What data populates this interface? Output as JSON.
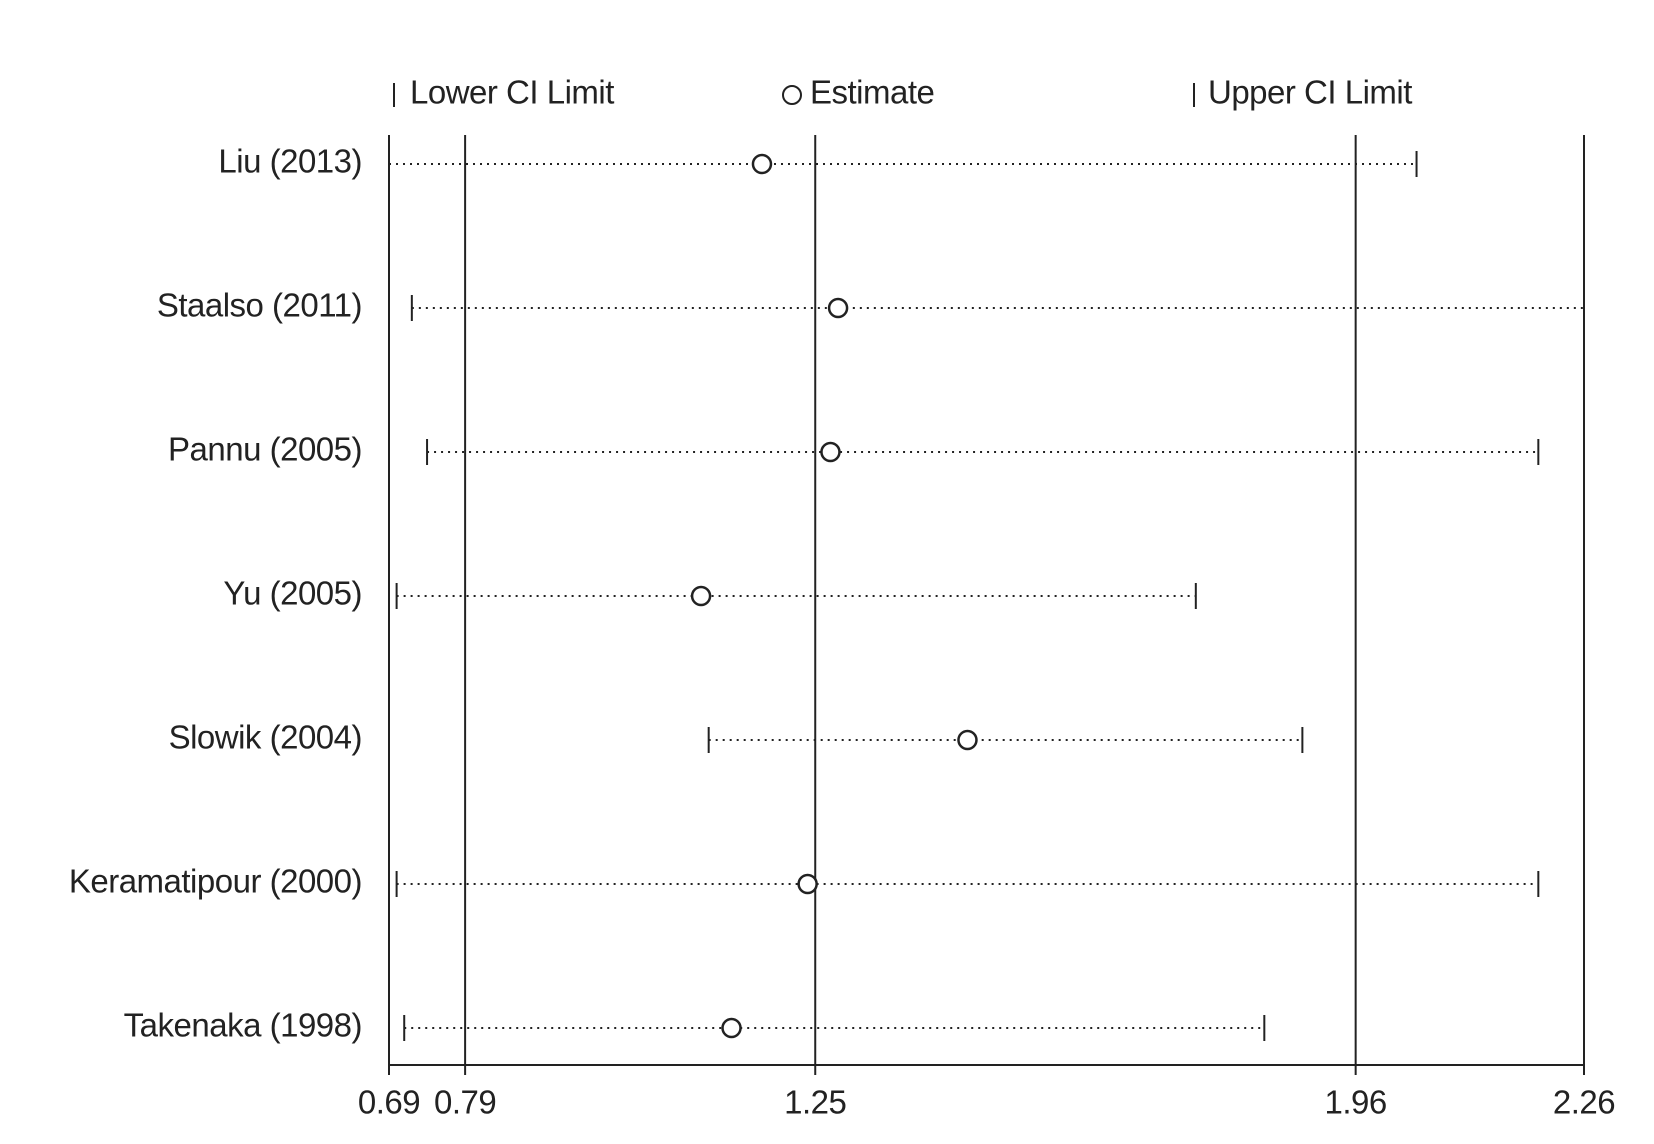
{
  "chart_data": {
    "type": "interval",
    "categories": [
      "Liu (2013)",
      "Staalso (2011)",
      "Pannu (2005)",
      "Yu (2005)",
      "Slowik (2004)",
      "Keramatipour (2000)",
      "Takenaka (1998)"
    ],
    "series": [
      {
        "name": "Lower CI Limit",
        "values": [
          0.69,
          0.72,
          0.74,
          0.7,
          1.11,
          0.7,
          0.71
        ]
      },
      {
        "name": "Estimate",
        "values": [
          1.18,
          1.28,
          1.27,
          1.1,
          1.45,
          1.24,
          1.14
        ]
      },
      {
        "name": "Upper CI Limit",
        "values": [
          2.04,
          2.26,
          2.2,
          1.75,
          1.89,
          2.2,
          1.84
        ]
      }
    ],
    "color": "#222222",
    "xlim": [
      0.69,
      2.26
    ],
    "xticks": [
      0.69,
      0.79,
      1.25,
      1.96,
      2.26
    ],
    "grid": true
  }
}
